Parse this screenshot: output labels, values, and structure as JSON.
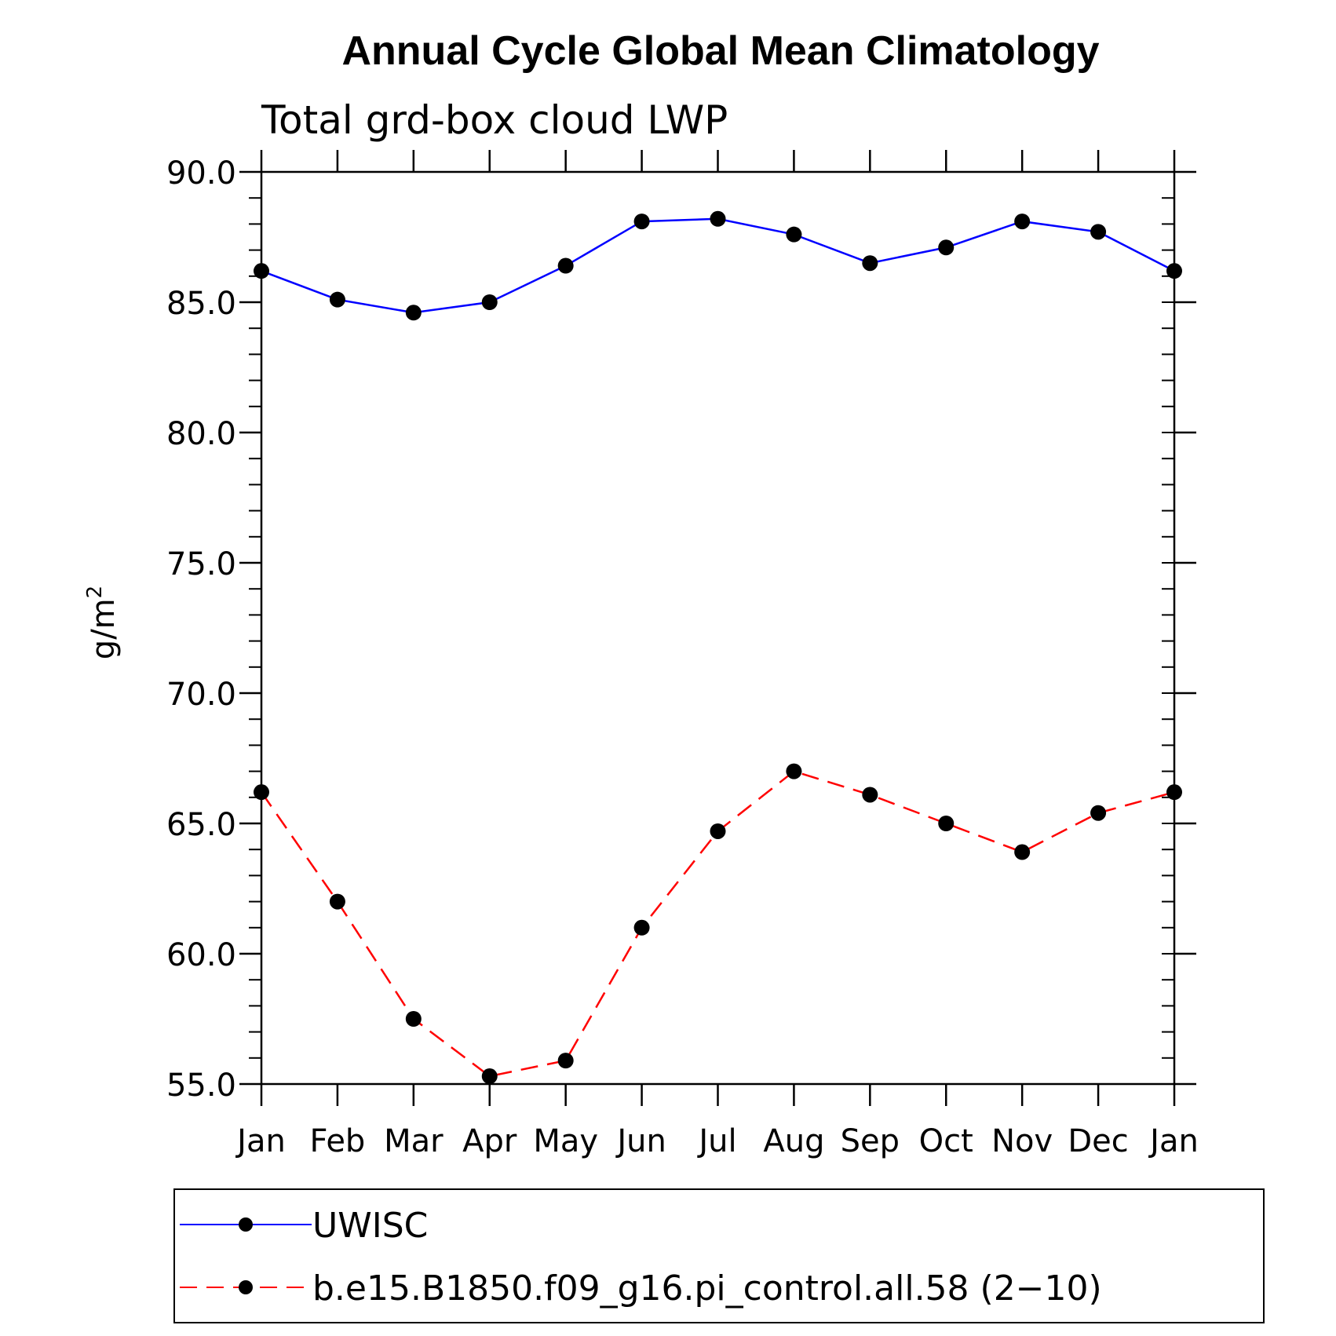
{
  "chart_data": {
    "type": "line",
    "title": "Annual Cycle Global Mean Climatology",
    "subtitle": "Total grd-box cloud LWP",
    "ylabel_base": "g/m",
    "ylabel_sup": "2",
    "categories": [
      "Jan",
      "Feb",
      "Mar",
      "Apr",
      "May",
      "Jun",
      "Jul",
      "Aug",
      "Sep",
      "Oct",
      "Nov",
      "Dec",
      "Jan"
    ],
    "ylim": [
      55.0,
      90.0
    ],
    "yticks": [
      "55.0",
      "60.0",
      "65.0",
      "70.0",
      "75.0",
      "80.0",
      "85.0",
      "90.0"
    ],
    "ytick_values": [
      55,
      60,
      65,
      70,
      75,
      80,
      85,
      90
    ],
    "legend_placement": "bottom",
    "grid": false,
    "series": [
      {
        "name": "UWISC",
        "color": "#0000ff",
        "dash": "solid",
        "values": [
          86.2,
          85.1,
          84.6,
          85.0,
          86.4,
          88.1,
          88.2,
          87.6,
          86.5,
          87.1,
          88.1,
          87.7,
          86.2
        ]
      },
      {
        "name": "b.e15.B1850.f09_g16.pi_control.all.58 (2−10)",
        "color": "#ff0000",
        "dash": "dashed",
        "values": [
          66.2,
          62.0,
          57.5,
          55.3,
          55.9,
          61.0,
          64.7,
          67.0,
          66.1,
          65.0,
          63.9,
          65.4,
          66.2
        ]
      }
    ]
  }
}
